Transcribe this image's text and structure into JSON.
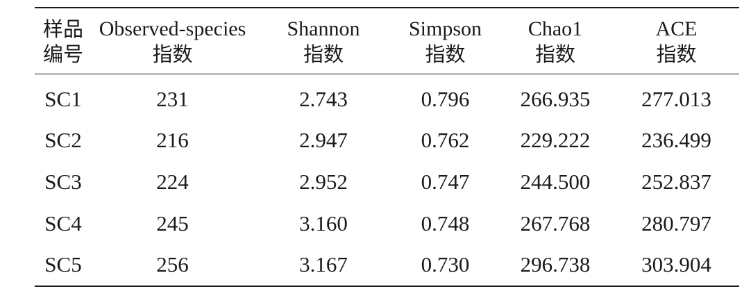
{
  "table": {
    "headers": [
      {
        "line1": "样品",
        "line2": "编号"
      },
      {
        "line1": "Observed-species",
        "line2": "指数"
      },
      {
        "line1": "Shannon",
        "line2": "指数"
      },
      {
        "line1": "Simpson",
        "line2": "指数"
      },
      {
        "line1": "Chao1",
        "line2": "指数"
      },
      {
        "line1": "ACE",
        "line2": "指数"
      }
    ],
    "rows": [
      [
        "SC1",
        "231",
        "2.743",
        "0.796",
        "266.935",
        "277.013"
      ],
      [
        "SC2",
        "216",
        "2.947",
        "0.762",
        "229.222",
        "236.499"
      ],
      [
        "SC3",
        "224",
        "2.952",
        "0.747",
        "244.500",
        "252.837"
      ],
      [
        "SC4",
        "245",
        "3.160",
        "0.748",
        "267.768",
        "280.797"
      ],
      [
        "SC5",
        "256",
        "3.167",
        "0.730",
        "296.738",
        "303.904"
      ]
    ]
  }
}
